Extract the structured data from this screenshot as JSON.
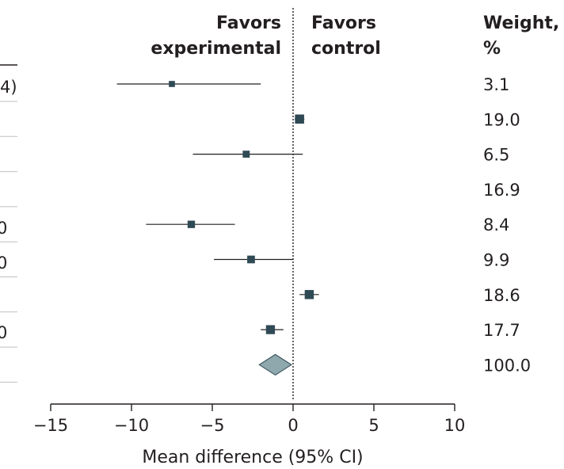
{
  "header": {
    "favors_left": [
      "Favors",
      "experimental"
    ],
    "favors_right": [
      "Favors",
      "control"
    ],
    "weight": [
      "Weight,",
      "%"
    ]
  },
  "cropped_left_labels": [
    "4)",
    "0",
    "0",
    "0"
  ],
  "colors": {
    "marker": "#2f4a55",
    "diamond": "#8fa8ad",
    "line": "#231f20",
    "divider": "#bfbfbf"
  },
  "chart_data": {
    "type": "forest",
    "xlabel": "Mean difference (95% CI)",
    "xlim": [
      -15,
      10
    ],
    "xticks": [
      -15,
      -10,
      -5,
      0,
      5,
      10
    ],
    "reference_line": 0,
    "studies": [
      {
        "mean": -7.5,
        "lo": -10.9,
        "hi": -2.0,
        "weight": "3.1"
      },
      {
        "mean": 0.4,
        "lo": 0.1,
        "hi": 0.7,
        "weight": "19.0"
      },
      {
        "mean": -2.9,
        "lo": -6.2,
        "hi": 0.6,
        "weight": "6.5"
      },
      {
        "mean": null,
        "lo": null,
        "hi": null,
        "weight": "16.9"
      },
      {
        "mean": -6.3,
        "lo": -9.1,
        "hi": -3.6,
        "weight": "8.4"
      },
      {
        "mean": -2.6,
        "lo": -4.9,
        "hi": 0.0,
        "weight": "9.9"
      },
      {
        "mean": 1.0,
        "lo": 0.4,
        "hi": 1.6,
        "weight": "18.6"
      },
      {
        "mean": -1.4,
        "lo": -2.0,
        "hi": -0.6,
        "weight": "17.7"
      }
    ],
    "overall": {
      "mean": -1.1,
      "lo": -2.1,
      "hi": -0.1,
      "weight": "100.0"
    }
  }
}
